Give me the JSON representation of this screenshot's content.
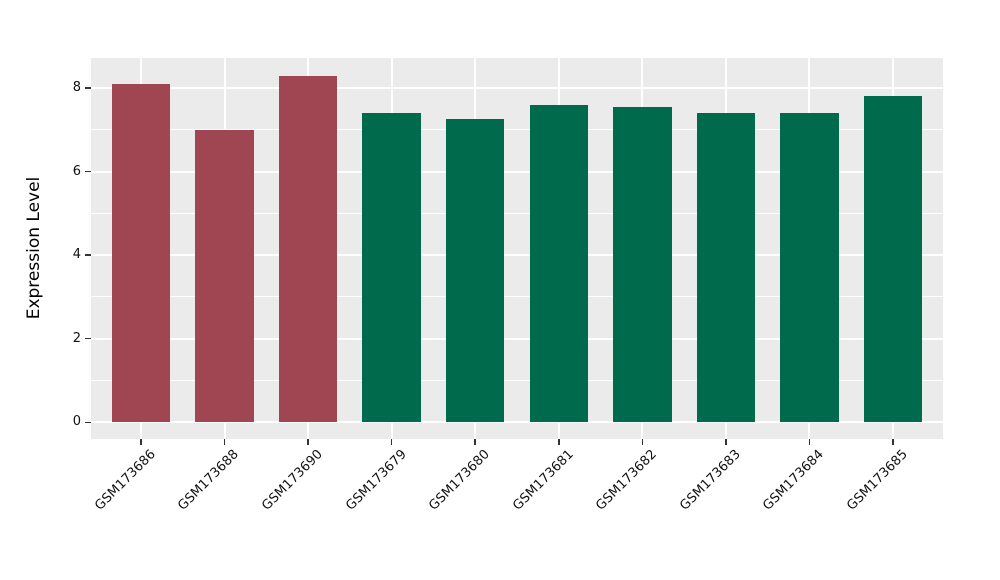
{
  "chart_data": {
    "type": "bar",
    "title": "",
    "xlabel": "",
    "ylabel": "Expression Level",
    "categories": [
      "GSM173686",
      "GSM173688",
      "GSM173690",
      "GSM173679",
      "GSM173680",
      "GSM173681",
      "GSM173682",
      "GSM173683",
      "GSM173684",
      "GSM173685"
    ],
    "values": [
      8.1,
      7.0,
      8.3,
      7.4,
      7.25,
      7.6,
      7.55,
      7.4,
      7.4,
      7.8
    ],
    "bar_colors": [
      "#A04552",
      "#A04552",
      "#A04552",
      "#006B4C",
      "#006B4C",
      "#006B4C",
      "#006B4C",
      "#006B4C",
      "#006B4C",
      "#006B4C"
    ],
    "palette": {
      "group_red": "#A04552",
      "group_green": "#006B4C"
    },
    "groups": [
      {
        "color": "#A04552",
        "samples": [
          "GSM173686",
          "GSM173688",
          "GSM173690"
        ]
      },
      {
        "color": "#006B4C",
        "samples": [
          "GSM173679",
          "GSM173680",
          "GSM173681",
          "GSM173682",
          "GSM173683",
          "GSM173684",
          "GSM173685"
        ]
      }
    ],
    "yticks": [
      0,
      2,
      4,
      6,
      8
    ],
    "minor_yticks": [
      1,
      3,
      5,
      7
    ],
    "ylim": [
      -0.4,
      8.72
    ],
    "bar_width_fraction": 0.7,
    "x_edge_padding": 0.6,
    "x_tick_rotation_deg": 45,
    "grid": "on",
    "legend": "none",
    "panel_bg": "#EBEBEB",
    "grid_color": "#FFFFFF",
    "tick_color": "#333333",
    "text_color": "#111111"
  }
}
